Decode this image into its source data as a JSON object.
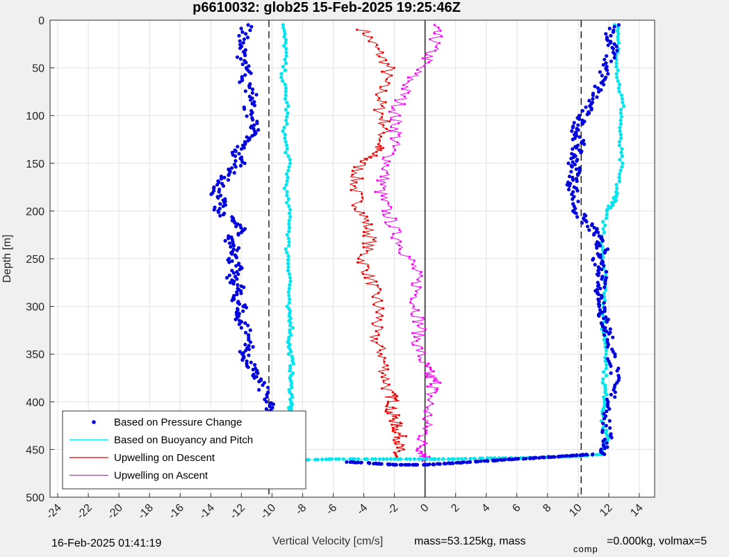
{
  "colors": {
    "pressure": "#0000dd",
    "buoyancy": "#00e5ee",
    "descent": "#ee0000",
    "ascent": "#ff00ff",
    "background": "#f0f0f0",
    "plot_bg": "#ffffff",
    "grid": "#e2e2e2"
  },
  "footer": {
    "timestamp": "16-Feb-2025 01:41:19",
    "xlabel": "Vertical Velocity [cm/s]",
    "mass_text": "mass=53.125kg, mass",
    "comp_sub": "comp",
    "comp_text": "=0.000kg, volmax=5"
  },
  "chart_data": {
    "type": "line",
    "title": "p6610032: glob25 15-Feb-2025 19:25:46Z",
    "ylabel": "Depth [m]",
    "xlim": [
      -24.5,
      15
    ],
    "ylim": [
      0,
      500
    ],
    "y_reversed": true,
    "grid": true,
    "xticks": [
      "-24",
      "-22",
      "-20",
      "-18",
      "-16",
      "-14",
      "-12",
      "-10",
      "-8",
      "-6",
      "-4",
      "-2",
      "0",
      "2",
      "4",
      "6",
      "8",
      "10",
      "12",
      "14"
    ],
    "yticks": [
      "0",
      "50",
      "100",
      "150",
      "200",
      "250",
      "300",
      "350",
      "400",
      "450",
      "500"
    ],
    "reference_lines": [
      {
        "x": -10.2,
        "style": "dashed"
      },
      {
        "x": 10.2,
        "style": "dashed"
      },
      {
        "x": 0,
        "style": "solid"
      }
    ],
    "legend": {
      "placement": "bottom-left",
      "entries": [
        "Based on Pressure Change",
        "Based on Buoyancy and Pitch",
        "Upwelling on Descent",
        "Upwelling on Ascent"
      ]
    },
    "series": [
      {
        "name": "Based on Pressure Change",
        "style": "dots",
        "branches": [
          {
            "x": [
              -11.6,
              -11.9,
              -12.1,
              -11.5,
              -11.8,
              -11.2,
              -11.6,
              -11.0,
              -11.4,
              -11.9,
              -12.4,
              -12.0,
              -12.8,
              -13.3,
              -13.8,
              -13.2,
              -13.5,
              -12.6,
              -12.0,
              -12.9,
              -12.2,
              -12.6,
              -12.3,
              -12.7,
              -12.1,
              -12.5,
              -11.9,
              -12.3,
              -11.8,
              -11.4,
              -11.9,
              -11.5,
              -11.2,
              -10.7,
              -10.3,
              -10.1,
              -9.9,
              -9.6
            ],
            "y": [
              5,
              20,
              35,
              50,
              65,
              80,
              95,
              110,
              120,
              130,
              140,
              150,
              160,
              170,
              180,
              190,
              200,
              210,
              220,
              230,
              240,
              250,
              260,
              270,
              280,
              290,
              300,
              310,
              320,
              340,
              350,
              360,
              370,
              380,
              400,
              410,
              430,
              460
            ]
          },
          {
            "x": [
              12.4,
              12.0,
              12.3,
              11.9,
              11.6,
              11.2,
              10.7,
              10.3,
              10.0,
              9.9,
              10.1,
              9.8,
              9.7,
              9.9,
              9.6,
              9.7,
              9.9,
              10.4,
              11.0,
              11.3,
              11.6,
              11.2,
              11.4,
              11.7,
              11.5,
              11.4,
              11.7,
              11.6,
              11.8,
              12.0,
              12.2,
              12.4,
              12.2,
              12.0,
              11.8,
              11.9,
              11.5
            ],
            "y": [
              5,
              20,
              30,
              45,
              60,
              75,
              90,
              100,
              110,
              120,
              130,
              140,
              150,
              160,
              170,
              180,
              200,
              210,
              220,
              230,
              240,
              250,
              260,
              270,
              280,
              290,
              300,
              310,
              320,
              330,
              350,
              370,
              390,
              410,
              430,
              445,
              455
            ]
          },
          {
            "x": [
              11.0,
              10.0,
              9.0,
              8.0,
              7.0,
              6.0,
              5.0,
              4.0,
              3.0,
              2.0,
              1.0,
              0.0,
              -1.0,
              -2.0,
              -3.0,
              -4.0,
              -5.0
            ],
            "y": [
              455,
              456,
              457,
              458,
              459,
              460,
              461,
              462,
              463,
              464,
              465,
              466,
              466,
              466,
              465,
              464,
              463
            ]
          }
        ]
      },
      {
        "name": "Based on Buoyancy and Pitch",
        "style": "dots",
        "branches": [
          {
            "x": [
              -9.3,
              -9.1,
              -9.3,
              -9.0,
              -9.2,
              -8.9,
              -9.1,
              -8.8,
              -9.0,
              -8.8,
              -9.0,
              -8.7,
              -8.9,
              -8.7,
              -8.8,
              -8.7,
              -8.9,
              -8.8,
              -8.6,
              -8.5,
              -8.7
            ],
            "y": [
              5,
              30,
              60,
              90,
              120,
              150,
              180,
              210,
              240,
              270,
              300,
              320,
              340,
              360,
              380,
              400,
              410,
              420,
              430,
              440,
              450
            ]
          },
          {
            "x": [
              12.5,
              12.6,
              12.6,
              12.9,
              12.7,
              12.8,
              12.5,
              12.4,
              11.8,
              11.6,
              11.7,
              11.8,
              11.6,
              11.9,
              11.7,
              11.8,
              11.6,
              11.9,
              11.5
            ],
            "y": [
              5,
              30,
              60,
              90,
              120,
              150,
              180,
              190,
              200,
              230,
              260,
              290,
              320,
              350,
              380,
              400,
              420,
              440,
              455
            ]
          },
          {
            "x": [
              11.5,
              10.0,
              8.0,
              6.0,
              4.0,
              2.0,
              0.0,
              -2.0,
              -4.0,
              -6.0,
              -8.0,
              -9.5
            ],
            "y": [
              455,
              457,
              458,
              459,
              459,
              460,
              460,
              460,
              460,
              460,
              461,
              461
            ]
          }
        ]
      },
      {
        "name": "Upwelling on Descent",
        "style": "line-markers",
        "branches": [
          {
            "x": [
              -4.0,
              -3.2,
              -2.4,
              -2.8,
              -3.0,
              -2.6,
              -2.9,
              -3.4,
              -4.2,
              -4.6,
              -4.4,
              -3.9,
              -3.5,
              -4.1,
              -3.6,
              -3.2,
              -3.0,
              -3.4,
              -2.8,
              -2.6,
              -2.4,
              -2.0,
              -2.3,
              -1.9,
              -1.8,
              -1.6,
              -1.8,
              -2.0
            ],
            "y": [
              10,
              30,
              50,
              70,
              90,
              110,
              130,
              140,
              150,
              170,
              190,
              210,
              230,
              250,
              270,
              290,
              310,
              330,
              350,
              370,
              390,
              400,
              410,
              420,
              430,
              440,
              450,
              458
            ]
          }
        ]
      },
      {
        "name": "Upwelling on Ascent",
        "style": "line-markers",
        "branches": [
          {
            "x": [
              0.5,
              0.7,
              0.2,
              -0.9,
              -1.5,
              -2.0,
              -1.8,
              -2.3,
              -2.6,
              -2.9,
              -2.5,
              -2.0,
              -1.4,
              -0.7,
              -0.5,
              -0.6,
              -0.3,
              -0.5,
              -0.1,
              0.2,
              0.7,
              0.4,
              0.2,
              0.0,
              -0.2,
              -0.1,
              0.1
            ],
            "y": [
              5,
              20,
              40,
              60,
              80,
              100,
              120,
              140,
              160,
              180,
              200,
              220,
              240,
              260,
              280,
              300,
              320,
              340,
              360,
              370,
              380,
              390,
              410,
              430,
              445,
              455,
              462
            ]
          }
        ]
      }
    ]
  }
}
